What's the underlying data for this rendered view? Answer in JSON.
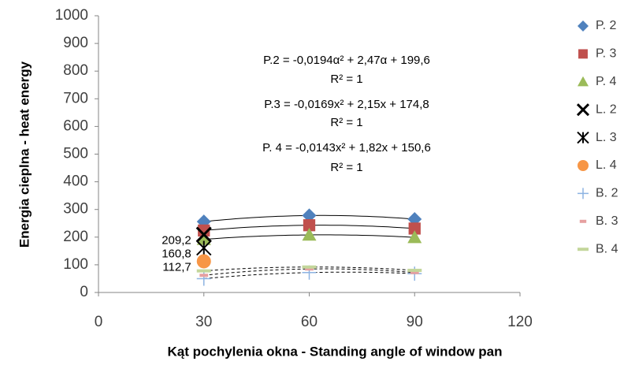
{
  "chart_data": {
    "type": "scatter",
    "x_label": "Kąt pochylenia okna - Standing angle of window pan",
    "y_label": "Energia cieplna - heat energy",
    "x": [
      30,
      60,
      90
    ],
    "xlim": [
      0,
      120
    ],
    "xticks": [
      0,
      30,
      60,
      90,
      120
    ],
    "ylim": [
      0,
      1000
    ],
    "yticks": [
      0,
      100,
      200,
      300,
      400,
      500,
      600,
      700,
      800,
      900,
      1000
    ],
    "grid": false,
    "legend": "right",
    "annotations": [
      "P.2 = -0,0194α² + 2,47α + 199,6",
      "R² = 1",
      "P.3 = -0,0169x² + 2,15x + 174,8",
      "R² = 1",
      "P. 4 = -0,0143x² + 1,82x + 150,6",
      "R² = 1"
    ],
    "series": [
      {
        "name": "P. 2",
        "color": "#4f81bd",
        "marker": "diamond",
        "trendline": "solid",
        "values": [
          256,
          278,
          265
        ]
      },
      {
        "name": "P. 3",
        "color": "#c0504d",
        "marker": "square",
        "trendline": "solid",
        "values": [
          224,
          243,
          231
        ]
      },
      {
        "name": "P. 4",
        "color": "#9bbb59",
        "marker": "triangle",
        "trendline": "solid",
        "values": [
          192,
          208,
          199
        ]
      },
      {
        "name": "L. 2",
        "color": "#000000",
        "marker": "x",
        "values": [
          209.2,
          null,
          null
        ],
        "value_labels": [
          "209,2",
          null,
          null
        ]
      },
      {
        "name": "L. 3",
        "color": "#000000",
        "marker": "star",
        "values": [
          160.8,
          null,
          null
        ],
        "value_labels": [
          "160,8",
          null,
          null
        ]
      },
      {
        "name": "L. 4",
        "color": "#f79646",
        "marker": "circle",
        "values": [
          112.7,
          null,
          null
        ],
        "value_labels": [
          "112,7",
          null,
          null
        ]
      },
      {
        "name": "B. 2",
        "color": "#8db3e2",
        "marker": "plus",
        "trendline": "dashed",
        "values": [
          50,
          72,
          68
        ]
      },
      {
        "name": "B. 3",
        "color": "#e6a0a0",
        "marker": "dash",
        "trendline": "dashed",
        "values": [
          62,
          85,
          72
        ]
      },
      {
        "name": "B. 4",
        "color": "#c3d69b",
        "marker": "longdash",
        "trendline": "dashed",
        "values": [
          78,
          92,
          80
        ]
      }
    ]
  }
}
